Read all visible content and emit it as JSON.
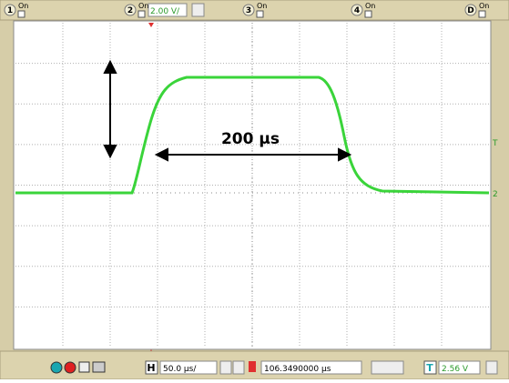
{
  "toolbar": {
    "channels": [
      {
        "number": "1",
        "state": "On"
      },
      {
        "number": "2",
        "state": "On",
        "scale": "2.00 V/"
      },
      {
        "number": "3",
        "state": "On"
      },
      {
        "number": "4",
        "state": "On"
      },
      {
        "number": "D",
        "state": "On"
      }
    ]
  },
  "screen": {
    "annotation": "200 µs",
    "trigger_marker": "T",
    "channel_marker": "2"
  },
  "statusbar": {
    "horizontal_label": "H",
    "timebase": "50.0 µs/",
    "delay": "106.3490000 µs",
    "trigger_label": "T",
    "trigger_level": "2.56 V"
  }
}
